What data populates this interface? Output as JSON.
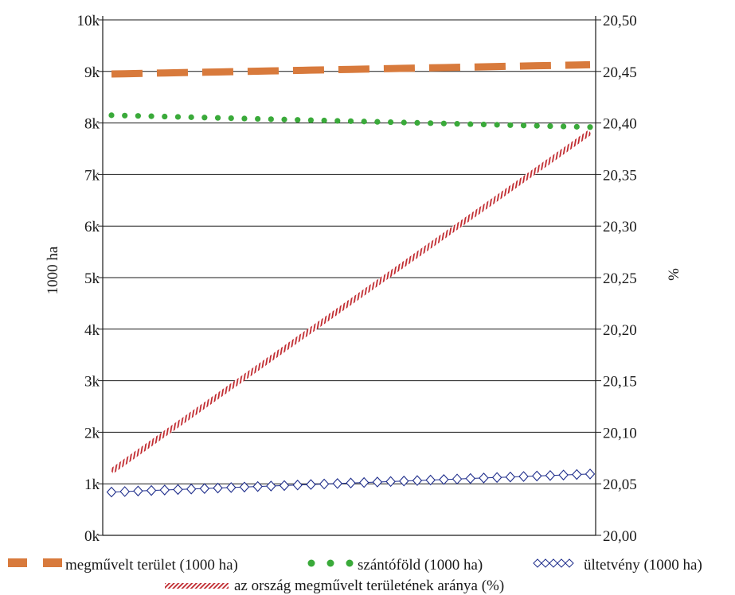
{
  "chart_data": {
    "type": "line",
    "x": [
      1,
      2,
      3,
      4,
      5,
      6,
      7,
      8,
      9,
      10,
      11,
      12,
      13,
      14,
      15,
      16,
      17,
      18,
      19,
      20,
      21,
      22,
      23,
      24,
      25,
      26,
      27,
      28,
      29,
      30,
      31,
      32,
      33,
      34,
      35,
      36,
      37
    ],
    "y_left": {
      "label": "1000 ha",
      "ylim": [
        0,
        10000
      ],
      "ticks": [
        {
          "value": 0,
          "label": "0k"
        },
        {
          "value": 1000,
          "label": "1k"
        },
        {
          "value": 2000,
          "label": "2k"
        },
        {
          "value": 3000,
          "label": "3k"
        },
        {
          "value": 4000,
          "label": "4k"
        },
        {
          "value": 5000,
          "label": "5k"
        },
        {
          "value": 6000,
          "label": "6k"
        },
        {
          "value": 7000,
          "label": "7k"
        },
        {
          "value": 8000,
          "label": "8k"
        },
        {
          "value": 9000,
          "label": "9k"
        },
        {
          "value": 10000,
          "label": "10k"
        }
      ]
    },
    "y_right": {
      "label": "%",
      "ylim": [
        20.0,
        20.5
      ],
      "ticks": [
        {
          "value": 20.0,
          "label": "20,00"
        },
        {
          "value": 20.05,
          "label": "20,05"
        },
        {
          "value": 20.1,
          "label": "20,10"
        },
        {
          "value": 20.15,
          "label": "20,15"
        },
        {
          "value": 20.2,
          "label": "20,20"
        },
        {
          "value": 20.25,
          "label": "20,25"
        },
        {
          "value": 20.3,
          "label": "20,30"
        },
        {
          "value": 20.35,
          "label": "20,35"
        },
        {
          "value": 20.4,
          "label": "20,40"
        },
        {
          "value": 20.45,
          "label": "20,45"
        },
        {
          "value": 20.5,
          "label": "20,50"
        }
      ]
    },
    "grid": true,
    "legend_position": "bottom",
    "series": [
      {
        "name": "megművelt terület  (1000 ha)",
        "axis": "left",
        "style": "dashed",
        "color": "#d87a3c",
        "start": 8950,
        "end": 9130
      },
      {
        "name": "szántóföld (1000 ha)",
        "axis": "left",
        "style": "dotted",
        "color": "#3aaa3a",
        "start": 8150,
        "end": 7920
      },
      {
        "name": "ültetvény (1000 ha)",
        "axis": "left",
        "style": "diamonds",
        "color": "#1f2e8c",
        "start": 840,
        "end": 1190
      },
      {
        "name": "az ország megművelt területének aránya (%)",
        "axis": "right",
        "style": "hatched",
        "color": "#c0282d",
        "start": 20.062,
        "end": 20.391
      }
    ]
  }
}
